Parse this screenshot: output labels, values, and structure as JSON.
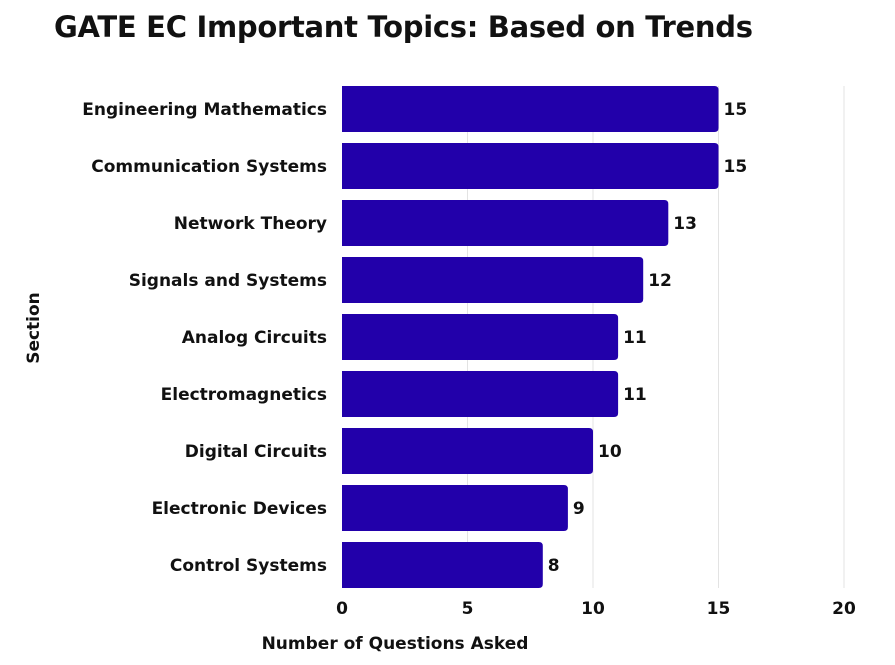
{
  "chart_data": {
    "type": "bar",
    "orientation": "horizontal",
    "title": "GATE EC Important Topics: Based on Trends",
    "xlabel": "Number of Questions Asked",
    "ylabel": "Section",
    "categories": [
      "Engineering Mathematics",
      "Communication Systems",
      "Network Theory",
      "Signals and Systems",
      "Analog Circuits",
      "Electromagnetics",
      "Digital Circuits",
      "Electronic Devices",
      "Control Systems"
    ],
    "values": [
      15,
      15,
      13,
      12,
      11,
      11,
      10,
      9,
      8
    ],
    "xlim": [
      0,
      20
    ],
    "xticks": [
      0,
      5,
      10,
      15,
      20
    ],
    "grid": "vertical",
    "bar_color": "#2200aa"
  }
}
